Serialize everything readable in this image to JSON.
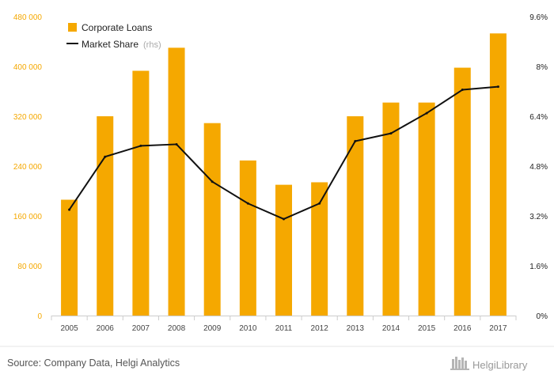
{
  "chart_data": {
    "type": "bar",
    "categories": [
      "2005",
      "2006",
      "2007",
      "2008",
      "2009",
      "2010",
      "2011",
      "2012",
      "2013",
      "2014",
      "2015",
      "2016",
      "2017"
    ],
    "series": [
      {
        "name": "Corporate Loans",
        "kind": "bar",
        "axis": "left",
        "color": "#f5a800",
        "values": [
          186000,
          320000,
          393000,
          430000,
          309000,
          249000,
          210000,
          214000,
          320000,
          342000,
          342000,
          398000,
          453000
        ]
      },
      {
        "name": "Market Share",
        "kind": "line",
        "axis": "right",
        "color": "#111111",
        "values": [
          3.4,
          5.1,
          5.45,
          5.5,
          4.3,
          3.6,
          3.1,
          3.6,
          5.6,
          5.85,
          6.5,
          7.25,
          7.35
        ]
      }
    ],
    "left_axis": {
      "ylim": [
        0,
        480000
      ],
      "ticks": [
        0,
        80000,
        160000,
        240000,
        320000,
        400000,
        480000
      ],
      "tick_labels": [
        "0",
        "80 000",
        "160 000",
        "240 000",
        "320 000",
        "400 000",
        "480 000"
      ]
    },
    "right_axis": {
      "ylim": [
        0,
        9.6
      ],
      "ticks": [
        0,
        1.6,
        3.2,
        4.8,
        6.4,
        8.0,
        9.6
      ],
      "tick_labels": [
        "0%",
        "1.6%",
        "3.2%",
        "4.8%",
        "6.4%",
        "8%",
        "9.6%"
      ]
    },
    "legend": {
      "position": "top-left",
      "items": [
        {
          "label": "Corporate Loans",
          "suffix": ""
        },
        {
          "label": "Market Share",
          "suffix": "(rhs)"
        }
      ]
    },
    "grid": false
  },
  "footer": {
    "source": "Source: Company Data, Helgi Analytics",
    "brand": "HelgiLibrary"
  },
  "colors": {
    "bar": "#f5a800",
    "line": "#111111",
    "axis": "#cccccc"
  }
}
